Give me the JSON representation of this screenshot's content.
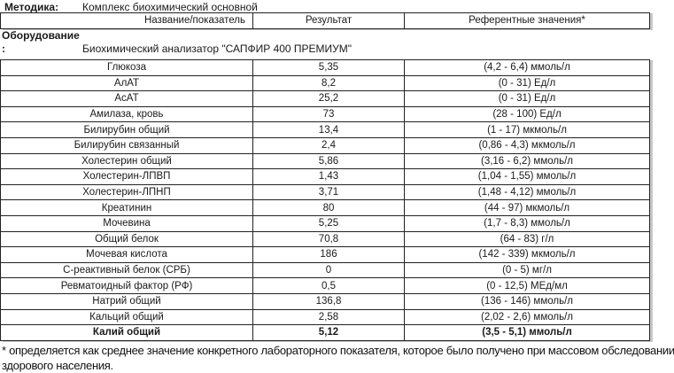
{
  "meta": {
    "method_label": "Методика:",
    "method_value": "Комплекс биохимический основной",
    "equipment_label": "Оборудование",
    "equipment_colon": ":",
    "equipment_value": "Биохимический анализатор \"САПФИР 400 ПРЕМИУМ\""
  },
  "table": {
    "headers": [
      "Название/показатель",
      "Результат",
      "Референтные значения*"
    ],
    "rows": [
      {
        "name": "Глюкоза",
        "result": "5,35",
        "reference": "(4,2 - 6,4) ммоль/л",
        "bold": false
      },
      {
        "name": "АлАТ",
        "result": "8,2",
        "reference": "(0 - 31) Ед/л",
        "bold": false
      },
      {
        "name": "АсАТ",
        "result": "25,2",
        "reference": "(0 - 31) Ед/л",
        "bold": false
      },
      {
        "name": "Амилаза, кровь",
        "result": "73",
        "reference": "(28 - 100) Ед/л",
        "bold": false
      },
      {
        "name": "Билирубин общий",
        "result": "13,4",
        "reference": "(1 - 17) мкмоль/л",
        "bold": false
      },
      {
        "name": "Билирубин связанный",
        "result": "2,4",
        "reference": "(0,86 - 4,3) мкмоль/л",
        "bold": false
      },
      {
        "name": "Холестерин общий",
        "result": "5,86",
        "reference": "(3,16 - 6,2) ммоль/л",
        "bold": false
      },
      {
        "name": "Холестерин-ЛПВП",
        "result": "1,43",
        "reference": "(1,04 - 1,55) ммоль/л",
        "bold": false
      },
      {
        "name": "Холестерин-ЛПНП",
        "result": "3,71",
        "reference": "(1,48 - 4,12) ммоль/л",
        "bold": false
      },
      {
        "name": "Креатинин",
        "result": "80",
        "reference": "(44 - 97) мкмоль/л",
        "bold": false
      },
      {
        "name": "Мочевина",
        "result": "5,25",
        "reference": "(1,7 - 8,3) ммоль/л",
        "bold": false
      },
      {
        "name": "Общий белок",
        "result": "70,8",
        "reference": "(64 - 83) г/л",
        "bold": false
      },
      {
        "name": "Мочевая кислота",
        "result": "186",
        "reference": "(142 - 339) мкмоль/л",
        "bold": false
      },
      {
        "name": "С-реактивный белок (СРБ)",
        "result": "0",
        "reference": "(0 - 5) мг/л",
        "bold": false
      },
      {
        "name": "Ревматоидный фактор (РФ)",
        "result": "0,5",
        "reference": "(0 - 12,5) МЕд/мл",
        "bold": false
      },
      {
        "name": "Натрий общий",
        "result": "136,8",
        "reference": "(136 - 146) ммоль/л",
        "bold": false
      },
      {
        "name": "Кальций общий",
        "result": "2,58",
        "reference": "(2,02 - 2,6) ммоль/л",
        "bold": false
      },
      {
        "name": "Калий общий",
        "result": "5,12",
        "reference": "(3,5 - 5,1) ммоль/л",
        "bold": true
      }
    ]
  },
  "footnote": {
    "line1": "* определяется как среднее значение конкретного лабораторного показателя, которое было получено при массовом обследовании",
    "line2": "здорового населения."
  }
}
